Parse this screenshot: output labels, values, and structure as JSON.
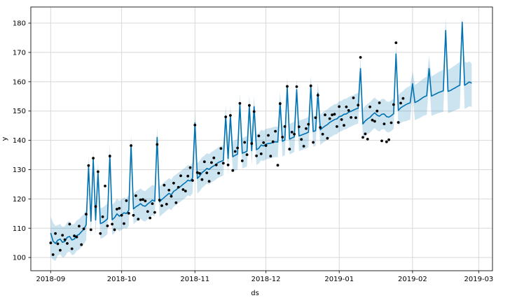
{
  "chart_data": {
    "type": "line",
    "title": "",
    "xlabel": "ds",
    "ylabel": "y",
    "legend": "none",
    "grid": true,
    "description": "Prophet-style daily time-series forecast: black observed points, blue forecast line, light-blue uncertainty band",
    "start_date": "2018-09-01",
    "cadence_days": 1,
    "x_tick_labels": [
      "2018-09",
      "2018-10",
      "2018-11",
      "2018-12",
      "2019-01",
      "2019-02",
      "2019-03"
    ],
    "x_tick_days": [
      0,
      30,
      61,
      91,
      122,
      153,
      181
    ],
    "y_tick_labels": [
      "100",
      "110",
      "120",
      "130",
      "140",
      "150",
      "160",
      "170",
      "180"
    ],
    "y_ticks": [
      100,
      110,
      120,
      130,
      140,
      150,
      160,
      170,
      180
    ],
    "xlim_days": [
      -8.4,
      186.8
    ],
    "ylim": [
      95.5,
      185.5
    ],
    "colors": {
      "line": "#0072B2",
      "band": "#0072B2",
      "band_opacity": 0.2,
      "points": "#000000",
      "grid": "#d8d8d8",
      "spine": "#262626",
      "text": "#000000"
    },
    "series": [
      {
        "name": "observed",
        "type": "scatter",
        "day0": 0,
        "values": [
          105.0,
          101.0,
          108.2,
          104.7,
          102.5,
          107.6,
          106.1,
          104.8,
          111.4,
          103.0,
          107.4,
          107.0,
          110.7,
          104.4,
          109.8,
          114.8,
          131.4,
          109.5,
          133.9,
          117.4,
          129.3,
          108.2,
          113.9,
          124.4,
          110.8,
          134.6,
          111.4,
          109.5,
          116.5,
          116.8,
          114.4,
          111.6,
          119.4,
          115.1,
          138.2,
          114.4,
          121.1,
          113.1,
          119.7,
          119.8,
          119.3,
          115.7,
          113.5,
          118.4,
          115.4,
          138.6,
          119.6,
          117.7,
          124.7,
          118.2,
          123.0,
          120.9,
          125.4,
          118.7,
          124.0,
          127.9,
          123.2,
          122.7,
          127.8,
          130.7,
          126.3,
          145.2,
          129.0,
          128.7,
          126.6,
          132.7,
          128.9,
          126.0,
          132.4,
          134.0,
          131.6,
          128.8,
          137.2,
          132.2,
          148.0,
          131.6,
          148.5,
          129.7,
          136.2,
          137.4,
          152.6,
          133.0,
          139.3,
          135.1,
          151.9,
          138.9,
          149.8,
          134.7,
          141.5,
          135.4,
          139.2,
          138.2,
          141.7,
          134.6,
          139.5,
          143.1,
          131.5,
          152.5,
          141.1,
          144.7,
          158.4,
          137.0,
          142.8,
          142.1,
          158.3,
          144.6,
          140.3,
          138.0,
          144.0,
          145.5,
          158.6,
          139.3,
          147.7,
          155.4,
          144.4,
          142.1,
          148.7,
          140.7,
          147.4,
          148.7,
          148.9,
          144.7,
          151.5,
          147.1,
          145.1,
          151.4,
          150.2,
          147.8,
          154.5,
          147.7,
          152.0,
          168.3,
          141.0,
          142.2,
          140.4,
          151.4,
          146.9,
          146.5,
          150.0,
          152.8,
          139.8,
          145.6,
          139.5,
          140.2,
          146.0,
          152.2,
          173.3,
          146.1,
          152.7,
          154.3
        ]
      },
      {
        "name": "yhat",
        "type": "line",
        "day0": 0,
        "values": [
          108.4,
          105.6,
          104.8,
          105.9,
          106.3,
          105.2,
          105.5,
          106.9,
          107.2,
          106.0,
          106.3,
          107.5,
          107.9,
          108.8,
          109.6,
          111.2,
          131.0,
          112.4,
          133.5,
          112.8,
          129.0,
          111.6,
          111.9,
          112.5,
          113.2,
          135.0,
          112.9,
          113.6,
          114.9,
          114.1,
          114.7,
          115.3,
          115.0,
          116.1,
          138.5,
          116.6,
          117.3,
          117.8,
          118.4,
          117.7,
          117.5,
          118.3,
          118.9,
          119.6,
          119.2,
          141.0,
          119.0,
          119.8,
          120.5,
          121.2,
          121.9,
          121.4,
          122.6,
          123.1,
          123.8,
          124.3,
          125.0,
          125.6,
          126.4,
          126.1,
          127.1,
          146.0,
          127.0,
          127.8,
          129.0,
          129.6,
          130.4,
          130.1,
          130.8,
          131.3,
          131.9,
          132.5,
          132.8,
          133.2,
          148.3,
          133.8,
          148.3,
          134.4,
          134.9,
          135.3,
          152.4,
          135.6,
          135.9,
          136.3,
          151.8,
          136.5,
          151.5,
          136.8,
          137.3,
          138.4,
          138.1,
          138.7,
          138.9,
          139.0,
          139.3,
          139.5,
          139.4,
          152.9,
          139.7,
          140.1,
          158.1,
          140.4,
          140.8,
          141.2,
          157.3,
          141.5,
          141.8,
          142.1,
          142.4,
          142.8,
          158.5,
          143.0,
          143.3,
          156.1,
          143.6,
          144.3,
          144.9,
          145.4,
          146.1,
          146.6,
          147.1,
          147.3,
          148.1,
          148.3,
          148.9,
          149.0,
          149.6,
          149.9,
          150.3,
          150.7,
          150.9,
          164.5,
          145.6,
          146.6,
          147.3,
          147.8,
          148.7,
          149.4,
          148.6,
          148.2,
          148.9,
          149.0,
          148.1,
          147.9,
          148.4,
          149.1,
          169.5,
          150.2,
          151.1,
          151.6,
          152.1,
          152.5,
          152.8,
          159.3,
          152.9,
          153.3,
          153.8,
          154.4,
          154.9,
          155.2,
          164.5,
          155.1,
          155.5,
          155.9,
          156.3,
          156.6,
          156.9,
          177.5,
          156.7,
          157.0,
          157.5,
          157.9,
          158.4,
          158.8,
          180.3,
          158.8,
          159.3,
          159.9,
          159.5
        ]
      },
      {
        "name": "uncertainty",
        "type": "band",
        "day0": 0,
        "lower": [
          100.2,
          99.3,
          98.8,
          100.7,
          101.1,
          100.0,
          100.3,
          101.7,
          102.0,
          100.8,
          101.1,
          102.3,
          102.7,
          103.6,
          104.4,
          106.0,
          127.4,
          107.2,
          129.9,
          107.6,
          125.4,
          106.4,
          106.7,
          107.3,
          108.0,
          131.4,
          107.7,
          108.4,
          109.7,
          108.9,
          109.5,
          110.1,
          109.8,
          110.9,
          134.9,
          111.4,
          112.1,
          112.6,
          113.2,
          112.5,
          112.3,
          113.1,
          113.7,
          114.4,
          114.0,
          137.4,
          113.8,
          114.6,
          115.3,
          116.0,
          116.7,
          116.2,
          117.4,
          117.9,
          118.6,
          119.1,
          119.8,
          120.4,
          121.2,
          120.9,
          121.9,
          142.4,
          121.8,
          122.6,
          123.8,
          124.4,
          125.2,
          124.9,
          125.6,
          126.1,
          126.7,
          127.3,
          127.6,
          128.0,
          144.7,
          128.6,
          144.7,
          129.2,
          129.7,
          130.1,
          148.8,
          130.4,
          130.7,
          131.1,
          148.2,
          131.3,
          147.9,
          131.6,
          132.1,
          133.2,
          132.9,
          133.5,
          133.7,
          133.8,
          134.1,
          134.3,
          134.2,
          149.3,
          134.5,
          134.9,
          154.5,
          135.2,
          135.6,
          136.0,
          153.7,
          136.3,
          136.6,
          136.9,
          137.2,
          137.6,
          154.9,
          137.8,
          138.1,
          152.5,
          138.4,
          139.1,
          139.7,
          140.2,
          140.9,
          141.4,
          141.9,
          142.1,
          142.9,
          143.1,
          143.7,
          143.8,
          144.4,
          144.7,
          145.1,
          145.5,
          145.7,
          160.9,
          140.4,
          141.4,
          142.1,
          142.6,
          143.5,
          144.2,
          143.4,
          143.0,
          143.7,
          143.8,
          142.9,
          142.7,
          143.2,
          143.9,
          165.9,
          145.0,
          145.9,
          146.4,
          146.5,
          146.8,
          147.0,
          155.0,
          146.9,
          147.2,
          147.6,
          148.1,
          148.5,
          148.7,
          160.2,
          148.4,
          148.7,
          149.0,
          149.3,
          149.5,
          149.7,
          173.2,
          149.3,
          149.5,
          149.9,
          150.2,
          150.6,
          150.9,
          177.3,
          150.7,
          151.1,
          151.6,
          151.4
        ],
        "upper": [
          114.0,
          111.9,
          110.8,
          111.1,
          111.5,
          110.4,
          110.7,
          112.1,
          112.4,
          111.2,
          111.5,
          112.7,
          113.1,
          114.0,
          114.8,
          116.4,
          134.6,
          117.6,
          137.1,
          118.0,
          132.6,
          116.8,
          117.1,
          117.7,
          118.4,
          138.6,
          118.1,
          118.8,
          120.1,
          119.3,
          119.9,
          120.5,
          120.2,
          121.3,
          142.1,
          121.8,
          122.5,
          123.0,
          123.6,
          122.9,
          122.7,
          123.5,
          124.1,
          124.8,
          124.4,
          144.6,
          124.2,
          125.0,
          125.7,
          126.4,
          127.1,
          126.6,
          127.8,
          128.3,
          129.0,
          129.5,
          130.2,
          130.8,
          131.6,
          131.3,
          132.3,
          149.6,
          132.2,
          133.0,
          134.2,
          134.8,
          135.6,
          135.3,
          136.0,
          136.5,
          137.1,
          137.7,
          138.0,
          138.4,
          151.9,
          139.0,
          151.9,
          139.6,
          140.1,
          140.5,
          156.0,
          140.8,
          141.1,
          141.5,
          155.4,
          141.7,
          155.1,
          142.0,
          142.5,
          143.6,
          143.3,
          143.9,
          144.1,
          144.2,
          144.5,
          144.7,
          144.6,
          156.5,
          144.9,
          145.3,
          161.7,
          145.6,
          146.0,
          146.4,
          160.9,
          146.7,
          147.0,
          147.3,
          147.6,
          148.0,
          162.1,
          148.2,
          148.5,
          159.7,
          148.8,
          149.5,
          150.1,
          150.6,
          151.3,
          151.8,
          152.3,
          152.5,
          153.3,
          153.5,
          154.1,
          154.2,
          154.8,
          155.1,
          155.5,
          155.9,
          156.1,
          168.1,
          150.8,
          151.8,
          152.5,
          153.0,
          153.9,
          154.6,
          153.8,
          153.4,
          154.1,
          154.2,
          153.3,
          153.1,
          153.6,
          154.3,
          173.1,
          155.4,
          156.3,
          156.8,
          157.7,
          158.2,
          158.6,
          163.6,
          158.9,
          159.4,
          160.0,
          160.7,
          161.3,
          161.7,
          168.8,
          161.8,
          162.3,
          162.8,
          163.3,
          163.7,
          164.1,
          181.8,
          164.1,
          164.5,
          165.1,
          165.6,
          166.2,
          166.7,
          182.4,
          166.9,
          166.5,
          166.9,
          166.2
        ]
      }
    ]
  }
}
